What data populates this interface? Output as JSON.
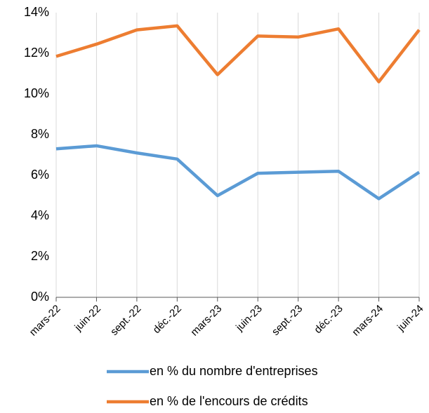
{
  "chart_data": {
    "type": "line",
    "categories": [
      "mars-22",
      "juin-22",
      "sept.-22",
      "déc.-22",
      "mars-23",
      "juin-23",
      "sept.-23",
      "déc.-23",
      "mars-24",
      "juin-24"
    ],
    "series": [
      {
        "name": "en % du nombre d'entreprises",
        "color": "#5b9bd5",
        "values": [
          7.3,
          7.45,
          7.1,
          6.8,
          5.0,
          6.1,
          6.15,
          6.2,
          4.85,
          6.15
        ]
      },
      {
        "name": "en % de l'encours de crédits",
        "color": "#ed7d31",
        "values": [
          11.85,
          12.45,
          13.15,
          13.35,
          10.95,
          12.85,
          12.8,
          13.2,
          10.6,
          13.15
        ]
      }
    ],
    "ylim": [
      0,
      14
    ],
    "yticks": [
      {
        "value": 0,
        "label": "0%"
      },
      {
        "value": 2,
        "label": "2%"
      },
      {
        "value": 4,
        "label": "4%"
      },
      {
        "value": 6,
        "label": "6%"
      },
      {
        "value": 8,
        "label": "8%"
      },
      {
        "value": 10,
        "label": "10%"
      },
      {
        "value": 12,
        "label": "12%"
      },
      {
        "value": 14,
        "label": "14%"
      }
    ],
    "grid": "vertical",
    "legend": "bottom"
  }
}
